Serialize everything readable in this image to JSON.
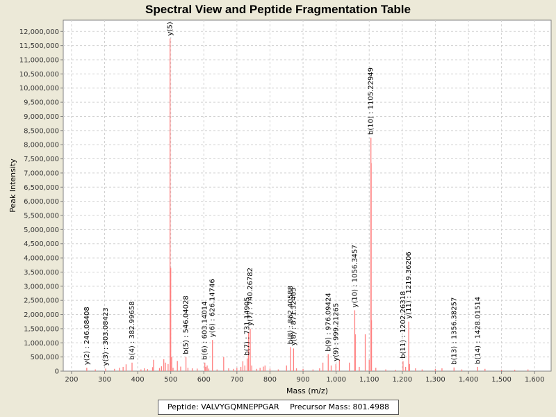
{
  "chart_data": {
    "type": "bar",
    "title": "Spectral View and Peptide Fragmentation Table",
    "xlabel": "Mass (m/z)",
    "ylabel": "Peak Intensity",
    "xlim": [
      175,
      1650
    ],
    "ylim": [
      0,
      12400000
    ],
    "x_ticks": [
      200,
      300,
      400,
      500,
      600,
      700,
      800,
      900,
      1000,
      1100,
      1200,
      1300,
      1400,
      1500,
      1600
    ],
    "x_tick_labels": [
      "200",
      "300",
      "400",
      "500",
      "600",
      "700",
      "800",
      "900",
      "1,000",
      "1,100",
      "1,200",
      "1,300",
      "1,400",
      "1,500",
      "1,600"
    ],
    "y_ticks": [
      0,
      500000,
      1000000,
      1500000,
      2000000,
      2500000,
      3000000,
      3500000,
      4000000,
      4500000,
      5000000,
      5500000,
      6000000,
      6500000,
      7000000,
      7500000,
      8000000,
      8500000,
      9000000,
      9500000,
      10000000,
      10500000,
      11000000,
      11500000,
      12000000
    ],
    "y_tick_labels": [
      "0",
      "500,000",
      "1,000,000",
      "1,500,000",
      "2,000,000",
      "2,500,000",
      "3,000,000",
      "3,500,000",
      "4,000,000",
      "4,500,000",
      "5,000,000",
      "5,500,000",
      "6,000,000",
      "6,500,000",
      "7,000,000",
      "7,500,000",
      "8,000,000",
      "8,500,000",
      "9,000,000",
      "9,500,000",
      "10,000,000",
      "10,500,000",
      "11,000,000",
      "11,500,000",
      "12,000,000"
    ],
    "grid": true,
    "bar_color": "#ff8080",
    "peaks": [
      [
        246.1,
        120000
      ],
      [
        272,
        60000
      ],
      [
        303.1,
        90000
      ],
      [
        330,
        80000
      ],
      [
        345,
        120000
      ],
      [
        356,
        150000
      ],
      [
        365,
        240000
      ],
      [
        383.0,
        300000
      ],
      [
        410,
        60000
      ],
      [
        420,
        100000
      ],
      [
        430,
        70000
      ],
      [
        445,
        140000
      ],
      [
        448,
        400000
      ],
      [
        466,
        110000
      ],
      [
        472,
        170000
      ],
      [
        479,
        420000
      ],
      [
        484,
        300000
      ],
      [
        492,
        250000
      ],
      [
        498,
        11750000
      ],
      [
        500,
        3650000
      ],
      [
        503,
        500000
      ],
      [
        507,
        120000
      ],
      [
        520,
        360000
      ],
      [
        530,
        160000
      ],
      [
        546.0,
        500000
      ],
      [
        552,
        120000
      ],
      [
        565,
        100000
      ],
      [
        580,
        90000
      ],
      [
        603.1,
        300000
      ],
      [
        606,
        150000
      ],
      [
        610,
        200000
      ],
      [
        615,
        90000
      ],
      [
        626.1,
        1100000
      ],
      [
        640,
        60000
      ],
      [
        660,
        500000
      ],
      [
        675,
        100000
      ],
      [
        690,
        80000
      ],
      [
        700,
        120000
      ],
      [
        712,
        150000
      ],
      [
        718,
        350000
      ],
      [
        724,
        200000
      ],
      [
        731.1,
        450000
      ],
      [
        735,
        1350000
      ],
      [
        740.3,
        1500000
      ],
      [
        745,
        200000
      ],
      [
        760,
        80000
      ],
      [
        770,
        120000
      ],
      [
        780,
        160000
      ],
      [
        785,
        200000
      ],
      [
        800,
        90000
      ],
      [
        825,
        60000
      ],
      [
        850,
        200000
      ],
      [
        862.4,
        850000
      ],
      [
        871.3,
        800000
      ],
      [
        880,
        100000
      ],
      [
        900,
        80000
      ],
      [
        930,
        60000
      ],
      [
        950,
        100000
      ],
      [
        960,
        300000
      ],
      [
        976.1,
        600000
      ],
      [
        985,
        200000
      ],
      [
        999.2,
        250000
      ],
      [
        1010,
        400000
      ],
      [
        1040,
        300000
      ],
      [
        1056.3,
        2150000
      ],
      [
        1058,
        1300000
      ],
      [
        1070,
        150000
      ],
      [
        1088,
        1300000
      ],
      [
        1100,
        400000
      ],
      [
        1105.2,
        8250000
      ],
      [
        1106,
        7350000
      ],
      [
        1107,
        1800000
      ],
      [
        1120,
        120000
      ],
      [
        1150,
        60000
      ],
      [
        1180,
        50000
      ],
      [
        1202.3,
        350000
      ],
      [
        1210,
        150000
      ],
      [
        1219.4,
        1750000
      ],
      [
        1222,
        250000
      ],
      [
        1240,
        100000
      ],
      [
        1260,
        60000
      ],
      [
        1300,
        80000
      ],
      [
        1320,
        100000
      ],
      [
        1356.4,
        130000
      ],
      [
        1380,
        60000
      ],
      [
        1428.0,
        150000
      ],
      [
        1450,
        80000
      ],
      [
        1500,
        50000
      ],
      [
        1540,
        50000
      ],
      [
        1580,
        60000
      ]
    ],
    "annotations": [
      {
        "x": 246.1,
        "y": 120000,
        "text": "y(2) : 246.08408"
      },
      {
        "x": 303.1,
        "y": 90000,
        "text": "y(3) : 303.08423"
      },
      {
        "x": 383.0,
        "y": 300000,
        "text": "b(4) : 382.99658"
      },
      {
        "x": 498,
        "y": 11750000,
        "text": "y(5)"
      },
      {
        "x": 546.0,
        "y": 500000,
        "text": "b(5) : 546.04028"
      },
      {
        "x": 603.1,
        "y": 300000,
        "text": "b(6) : 603.14014"
      },
      {
        "x": 626.1,
        "y": 1100000,
        "text": "y(6) : 626.14746"
      },
      {
        "x": 731.1,
        "y": 450000,
        "text": "b(7) : 731.14905"
      },
      {
        "x": 740.3,
        "y": 1500000,
        "text": "y(7) : 740.26782"
      },
      {
        "x": 862.4,
        "y": 850000,
        "text": "b(8) : 862.40588"
      },
      {
        "x": 871.3,
        "y": 800000,
        "text": "y(8) : 871.32465"
      },
      {
        "x": 976.1,
        "y": 600000,
        "text": "b(9) : 976.09424"
      },
      {
        "x": 999.2,
        "y": 250000,
        "text": "y(9) : 999.21265"
      },
      {
        "x": 1056.3,
        "y": 2150000,
        "text": "y(10) : 1056.3457"
      },
      {
        "x": 1105.2,
        "y": 8250000,
        "text": "b(10) : 1105.22949"
      },
      {
        "x": 1202.3,
        "y": 350000,
        "text": "b(11) : 1202.26318"
      },
      {
        "x": 1219.4,
        "y": 1750000,
        "text": "y(11) : 1219.36206"
      },
      {
        "x": 1356.4,
        "y": 130000,
        "text": "b(13) : 1356.38257"
      },
      {
        "x": 1428.0,
        "y": 150000,
        "text": "b(14) : 1428.01514"
      }
    ]
  },
  "legend": {
    "peptide": "Peptide: VALVYGQMNEPPGAR",
    "precursor": "Precursor Mass: 801.4988"
  }
}
